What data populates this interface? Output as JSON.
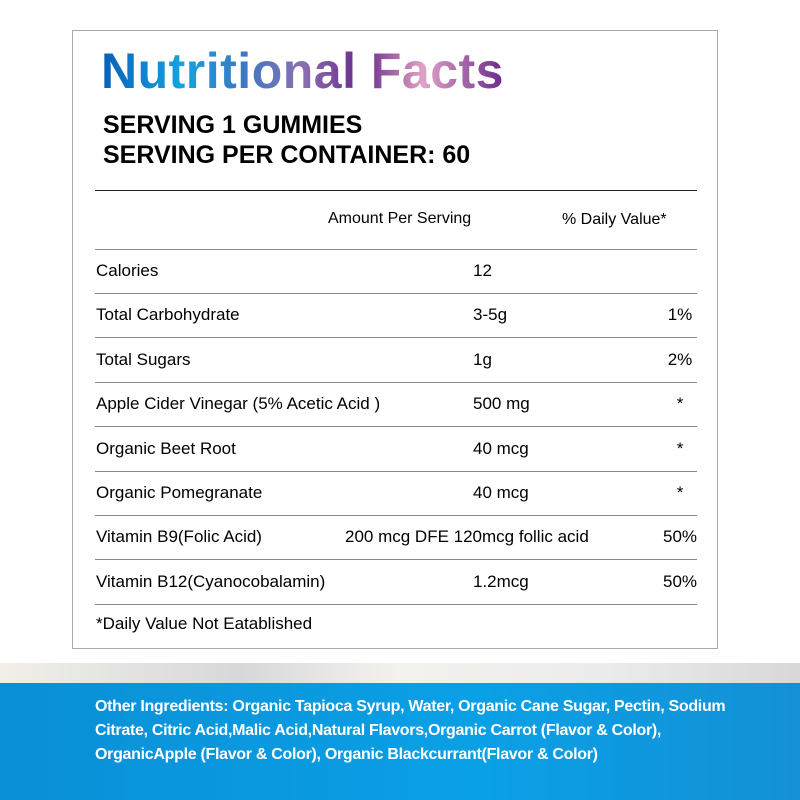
{
  "title": "Nutritional Facts",
  "serving": "SERVING 1 GUMMIES",
  "servings_per_container": "SERVING PER CONTAINER: 60",
  "header": {
    "amount": "Amount Per Serving",
    "dv": "% Daily Value*"
  },
  "rows": [
    {
      "name": "Calories",
      "amount": "12",
      "dv": ""
    },
    {
      "name": "Total Carbohydrate",
      "amount": "3-5g",
      "dv": "1%"
    },
    {
      "name": "Total Sugars",
      "amount": "1g",
      "dv": "2%"
    },
    {
      "name": "Apple Cider Vinegar (5% Acetic Acid )",
      "amount": "500 mg",
      "dv": "*"
    },
    {
      "name": "Organic Beet Root",
      "amount": "40 mcg",
      "dv": "*"
    },
    {
      "name": "Organic Pomegranate",
      "amount": "40 mcg",
      "dv": "*"
    },
    {
      "name": "Vitamin B9(Folic Acid)",
      "amount": "200 mcg DFE 120mcg follic acid",
      "dv": "50%"
    },
    {
      "name": "Vitamin B12(Cyanocobalamin)",
      "amount": "1.2mcg",
      "dv": "50%"
    }
  ],
  "footnote": "*Daily Value Not Eatablished",
  "ingredients": "Other Ingredients: Organic Tapioca Syrup, Water, Organic Cane Sugar, Pectin, Sodium Citrate, Citric Acid,Malic Acid,Natural Flavors,Organic Carrot (Flavor & Color), OrganicApple (Flavor & Color), Organic Blackcurrant(Flavor & Color)"
}
